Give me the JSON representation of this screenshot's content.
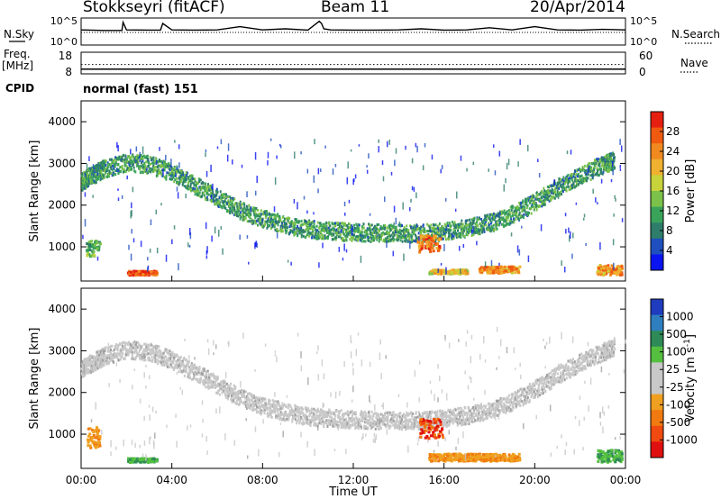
{
  "header": {
    "station": "Stokkseyri (fitACF)",
    "beam": "Beam 11",
    "date": "20/Apr/2014"
  },
  "side_labels": {
    "nsky": "N.Sky",
    "nsearch": "N.Search",
    "freq": "Freq.",
    "freq_unit": "[MHz]",
    "nave": "Nave",
    "cpid": "CPID"
  },
  "cpid_value": "normal (fast) 151",
  "chart_data": [
    {
      "type": "line",
      "panel": "noise",
      "left_ticks": [
        "10^5",
        "10^0"
      ],
      "right_ticks": [
        "10^5",
        "10^0"
      ],
      "series": [
        {
          "name": "N.Sky",
          "style": "solid"
        },
        {
          "name": "N.Search",
          "style": "dotted"
        }
      ],
      "x": [
        0,
        1,
        1.8,
        1.85,
        2,
        3,
        3.5,
        3.6,
        4,
        5,
        6,
        7,
        8,
        9,
        10,
        10.5,
        10.6,
        10.7,
        11,
        12,
        13,
        14,
        15,
        16,
        17,
        18,
        19,
        20,
        21,
        22,
        23,
        24
      ],
      "nsky_log10": [
        0.4,
        0.35,
        0.35,
        1.1,
        0.4,
        0.38,
        0.38,
        1.0,
        0.4,
        0.38,
        0.4,
        0.7,
        0.4,
        0.5,
        0.38,
        1.2,
        1.0,
        0.5,
        0.4,
        0.38,
        0.38,
        0.4,
        0.5,
        0.38,
        0.4,
        0.6,
        0.4,
        0.7,
        0.4,
        0.38,
        0.45,
        0.4
      ],
      "nsearch_log10": [
        0.42,
        0.42,
        0.42,
        0.42,
        0.42,
        0.42,
        0.42,
        0.42,
        0.42,
        0.42,
        0.42,
        0.42,
        0.42,
        0.42,
        0.42,
        0.42,
        0.42,
        0.42,
        0.42,
        0.42,
        0.42,
        0.42,
        0.42,
        0.42,
        0.42,
        0.42,
        0.42,
        0.42,
        0.42,
        0.42,
        0.42,
        0.42
      ],
      "left_range_log10": [
        0,
        5
      ],
      "right_range_log10": [
        0,
        5
      ]
    },
    {
      "type": "line",
      "panel": "frequency",
      "left_ticks": [
        "18",
        "8"
      ],
      "right_ticks": [
        "60",
        "0"
      ],
      "series": [
        {
          "name": "Freq.",
          "unit": "MHz",
          "value": 10.2
        },
        {
          "name": "Nave",
          "value": 26
        }
      ],
      "left_range": [
        8,
        18
      ],
      "right_range": [
        0,
        60
      ]
    },
    {
      "type": "heatmap",
      "panel": "power",
      "title": "",
      "xlabel": "",
      "ylabel": "Slant Range [km]",
      "x_range_hours": [
        0,
        24
      ],
      "y_range_km": [
        180,
        4500
      ],
      "y_ticks": [
        1000,
        2000,
        3000,
        4000
      ],
      "colorbar": {
        "label": "Power [dB]",
        "ticks": [
          4,
          8,
          12,
          16,
          20,
          24,
          28
        ],
        "range": [
          0,
          30
        ],
        "colors": [
          "#0a14f0",
          "#1f4fbf",
          "#2e7d6b",
          "#3aa35a",
          "#7cc24a",
          "#c8d23a",
          "#f0b030",
          "#f08a20",
          "#f05a10",
          "#e62010"
        ]
      },
      "features": [
        {
          "name": "receding-trace",
          "hour": [
            0.0,
            0.5,
            1.0,
            2.0,
            3.0,
            4.0,
            5.0,
            6.0,
            7.0,
            8.0,
            9.0,
            10.0,
            11.0,
            12.0,
            13.0,
            14.0,
            15.0,
            16.0,
            17.0,
            18.0,
            19.0,
            20.0,
            21.0,
            22.0,
            23.0,
            23.5
          ],
          "range_km": [
            2600,
            2750,
            2900,
            3050,
            3000,
            2800,
            2500,
            2200,
            1900,
            1700,
            1550,
            1450,
            1400,
            1380,
            1360,
            1350,
            1350,
            1400,
            1480,
            1600,
            1800,
            2100,
            2450,
            2750,
            3000,
            3100
          ],
          "power_db": 10
        },
        {
          "name": "near-range-echo",
          "hour": [
            2.0,
            3.3
          ],
          "range_km": [
            350,
            450
          ],
          "power_db": 26
        },
        {
          "name": "near-range-echo",
          "hour": [
            15.3,
            17.0
          ],
          "range_km": [
            380,
            480
          ],
          "power_db": 18
        },
        {
          "name": "near-range-echo",
          "hour": [
            17.5,
            19.3
          ],
          "range_km": [
            400,
            560
          ],
          "power_db": 22
        },
        {
          "name": "near-range-echo",
          "hour": [
            22.7,
            23.8
          ],
          "range_km": [
            350,
            600
          ],
          "power_db": 22
        },
        {
          "name": "enhanced-patch",
          "hour": [
            14.8,
            15.8
          ],
          "range_km": [
            900,
            1300
          ],
          "power_db": 24
        },
        {
          "name": "enhanced-patch",
          "hour": [
            0.2,
            0.8
          ],
          "range_km": [
            800,
            1200
          ],
          "power_db": 12
        }
      ]
    },
    {
      "type": "heatmap",
      "panel": "velocity",
      "title": "",
      "xlabel": "Time UT",
      "ylabel": "Slant Range [km]",
      "x_ticks": [
        "00:00",
        "04:00",
        "08:00",
        "12:00",
        "16:00",
        "20:00",
        "00:00"
      ],
      "x_range_hours": [
        0,
        24
      ],
      "y_range_km": [
        180,
        4500
      ],
      "y_ticks": [
        1000,
        2000,
        3000,
        4000
      ],
      "colorbar": {
        "label": "Velocity",
        "unit_base": "[m s",
        "unit_exp": "-1",
        "unit_end": "]",
        "ticks": [
          "1000",
          "500",
          "100",
          "25",
          "-25",
          "-100",
          "-500",
          "-1000"
        ],
        "colors": [
          "#1f3cbf",
          "#2f7fbf",
          "#2e8b57",
          "#55c040",
          "#c8c8c8",
          "#c8c8c8",
          "#f0a020",
          "#f07a10",
          "#f04a10",
          "#e01010"
        ]
      },
      "features": [
        {
          "name": "ground-scatter-trace",
          "hour": [
            0.0,
            0.5,
            1.0,
            2.0,
            3.0,
            4.0,
            5.0,
            6.0,
            7.0,
            8.0,
            9.0,
            10.0,
            11.0,
            12.0,
            13.0,
            14.0,
            15.0,
            16.0,
            17.0,
            18.0,
            19.0,
            20.0,
            21.0,
            22.0,
            23.0,
            23.5
          ],
          "range_km": [
            2600,
            2750,
            2900,
            3050,
            3000,
            2800,
            2500,
            2200,
            1900,
            1700,
            1550,
            1450,
            1400,
            1380,
            1360,
            1350,
            1350,
            1400,
            1480,
            1600,
            1800,
            2100,
            2450,
            2750,
            3000,
            3100
          ],
          "velocity": 0
        },
        {
          "name": "near-range-echo",
          "hour": [
            2.0,
            3.3
          ],
          "range_km": [
            350,
            450
          ],
          "velocity": 150
        },
        {
          "name": "near-range-echo",
          "hour": [
            15.3,
            19.3
          ],
          "range_km": [
            380,
            560
          ],
          "velocity": -200
        },
        {
          "name": "negative-patch",
          "hour": [
            14.9,
            15.9
          ],
          "range_km": [
            900,
            1400
          ],
          "velocity": -800
        },
        {
          "name": "near-range-echo",
          "hour": [
            0.2,
            0.8
          ],
          "range_km": [
            700,
            1200
          ],
          "velocity": -150
        },
        {
          "name": "near-range-echo",
          "hour": [
            22.7,
            23.8
          ],
          "range_km": [
            350,
            650
          ],
          "velocity": 200
        }
      ]
    }
  ]
}
